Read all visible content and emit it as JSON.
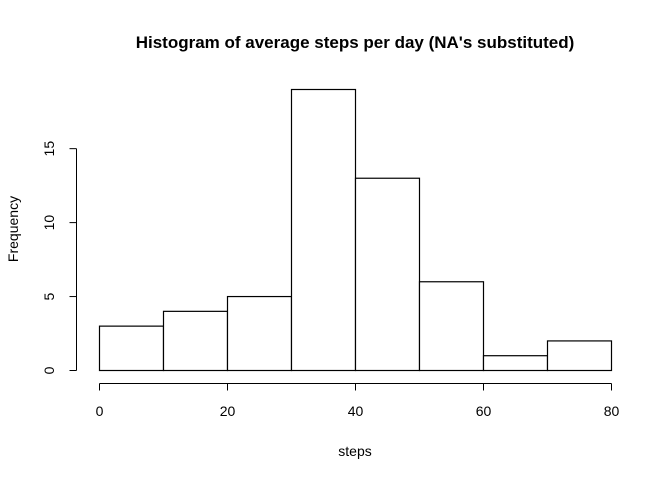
{
  "chart_data": {
    "type": "bar",
    "title": "Histogram of average steps per day (NA's substituted)",
    "xlabel": "steps",
    "ylabel": "Frequency",
    "bins": [
      {
        "start": 0,
        "end": 10,
        "value": 3
      },
      {
        "start": 10,
        "end": 20,
        "value": 4
      },
      {
        "start": 20,
        "end": 30,
        "value": 5
      },
      {
        "start": 30,
        "end": 40,
        "value": 19
      },
      {
        "start": 40,
        "end": 50,
        "value": 13
      },
      {
        "start": 50,
        "end": 60,
        "value": 6
      },
      {
        "start": 60,
        "end": 70,
        "value": 1
      },
      {
        "start": 70,
        "end": 80,
        "value": 2
      }
    ],
    "xlim": [
      0,
      80
    ],
    "ylim": [
      0,
      19
    ],
    "xticks": [
      "0",
      "20",
      "40",
      "60",
      "80"
    ],
    "yticks": [
      "0",
      "5",
      "10",
      "15"
    ],
    "grid": false,
    "legend": "none"
  }
}
